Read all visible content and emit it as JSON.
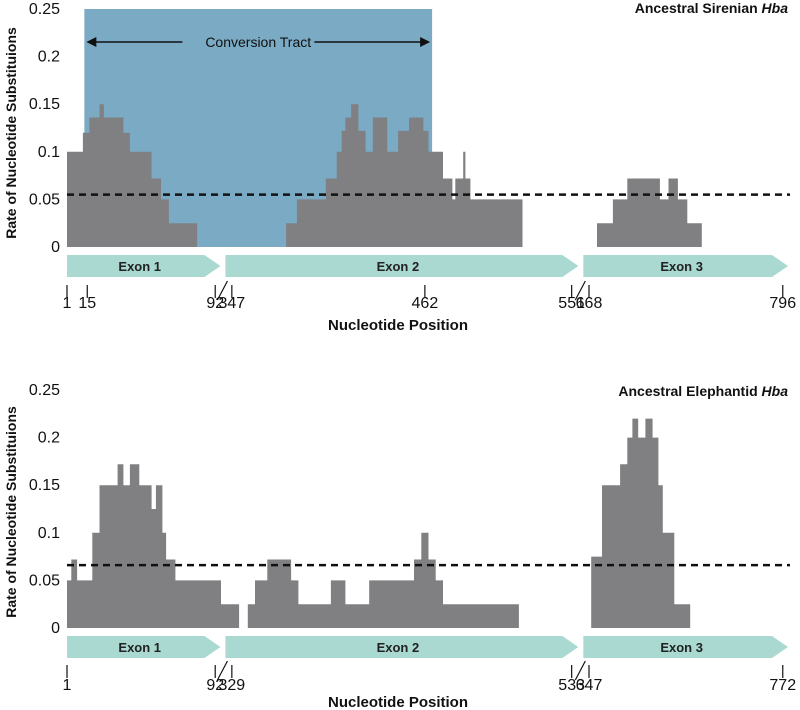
{
  "chart_data": [
    {
      "type": "area",
      "title": "Ancestral Sirenian",
      "title_italic": "Hba",
      "ylabel": "Rate of Nucleotide Substituions",
      "xlabel": "Nucleotide Position",
      "ylim": [
        0,
        0.25
      ],
      "yticks": [
        0,
        0.05,
        0.1,
        0.15,
        0.2,
        0.25
      ],
      "ytick_labels": [
        "0",
        "0.05",
        "0.1",
        "0.15",
        "0.2",
        "0.25"
      ],
      "threshold": 0.055,
      "conversion_tract": {
        "label": "Conversion Tract",
        "x_start": 0.024,
        "x_end": 0.505
      },
      "exons": [
        {
          "label": "Exon 1",
          "x_start": 0.0,
          "x_end": 0.215
        },
        {
          "label": "Exon 2",
          "x_start": 0.215,
          "x_end": 0.71
        },
        {
          "label": "Exon 3",
          "x_start": 0.71,
          "x_end": 1.0
        }
      ],
      "position_ticks": [
        {
          "label": "1",
          "x": 0.0
        },
        {
          "label": "15",
          "x": 0.028
        },
        {
          "label": "92",
          "x": 0.205
        },
        {
          "label": "347",
          "x": 0.228
        },
        {
          "label": "462",
          "x": 0.495
        },
        {
          "label": "551",
          "x": 0.698
        },
        {
          "label": "668",
          "x": 0.722
        },
        {
          "label": "796",
          "x": 0.99
        }
      ],
      "axis_breaks": [
        0.215,
        0.71
      ],
      "segments": [
        {
          "x": [
            0.0,
            0.022,
            0.022,
            0.031,
            0.031,
            0.045,
            0.045,
            0.051,
            0.051,
            0.078,
            0.078,
            0.087,
            0.087,
            0.117,
            0.117,
            0.13,
            0.13,
            0.141,
            0.141,
            0.18,
            0.18,
            0.183
          ],
          "y": [
            0.1,
            0.1,
            0.12,
            0.12,
            0.136,
            0.136,
            0.15,
            0.15,
            0.136,
            0.136,
            0.12,
            0.12,
            0.1,
            0.1,
            0.072,
            0.072,
            0.05,
            0.05,
            0.025,
            0.025,
            0,
            0
          ]
        },
        {
          "x": [
            0.29,
            0.303,
            0.303,
            0.318,
            0.318,
            0.358,
            0.358,
            0.373,
            0.373,
            0.38,
            0.38,
            0.385,
            0.385,
            0.393,
            0.393,
            0.403,
            0.403,
            0.413,
            0.413,
            0.423,
            0.423,
            0.443,
            0.443,
            0.458,
            0.458,
            0.473,
            0.473,
            0.493,
            0.493,
            0.5,
            0.5,
            0.52,
            0.52,
            0.533,
            0.533,
            0.537,
            0.537,
            0.548,
            0.548,
            0.551,
            0.551,
            0.558,
            0.558,
            0.63,
            0.63,
            0.641
          ],
          "y": [
            0,
            0,
            0.025,
            0.025,
            0.05,
            0.05,
            0.072,
            0.072,
            0.1,
            0.1,
            0.122,
            0.122,
            0.136,
            0.136,
            0.15,
            0.15,
            0.122,
            0.122,
            0.1,
            0.1,
            0.136,
            0.136,
            0.1,
            0.1,
            0.122,
            0.122,
            0.136,
            0.136,
            0.122,
            0.122,
            0.1,
            0.1,
            0.072,
            0.072,
            0.05,
            0.05,
            0.072,
            0.072,
            0.1,
            0.1,
            0.072,
            0.072,
            0.05,
            0.05,
            0,
            0
          ]
        },
        {
          "x": [
            0.727,
            0.733,
            0.733,
            0.755,
            0.755,
            0.775,
            0.775,
            0.82,
            0.82,
            0.832,
            0.832,
            0.845,
            0.845,
            0.858,
            0.858,
            0.878,
            0.878,
            0.892
          ],
          "y": [
            0,
            0,
            0.025,
            0.025,
            0.05,
            0.05,
            0.072,
            0.072,
            0.05,
            0.05,
            0.072,
            0.072,
            0.05,
            0.05,
            0.025,
            0.025,
            0,
            0
          ]
        }
      ]
    },
    {
      "type": "area",
      "title": "Ancestral Elephantid",
      "title_italic": "Hba",
      "ylabel": "Rate of Nucleotide Substituions",
      "xlabel": "Nucleotide Position",
      "ylim": [
        0,
        0.25
      ],
      "yticks": [
        0,
        0.05,
        0.1,
        0.15,
        0.2,
        0.25
      ],
      "ytick_labels": [
        "0",
        "0.05",
        "0.1",
        "0.15",
        "0.2",
        "0.25"
      ],
      "threshold": 0.066,
      "exons": [
        {
          "label": "Exon 1",
          "x_start": 0.0,
          "x_end": 0.215
        },
        {
          "label": "Exon 2",
          "x_start": 0.215,
          "x_end": 0.71
        },
        {
          "label": "Exon 3",
          "x_start": 0.71,
          "x_end": 1.0
        }
      ],
      "position_ticks": [
        {
          "label": "1",
          "x": 0.0
        },
        {
          "label": "92",
          "x": 0.205
        },
        {
          "label": "329",
          "x": 0.228
        },
        {
          "label": "533",
          "x": 0.698
        },
        {
          "label": "647",
          "x": 0.722
        },
        {
          "label": "772",
          "x": 0.99
        }
      ],
      "axis_breaks": [
        0.215,
        0.71
      ],
      "segments": [
        {
          "x": [
            0.0,
            0.006,
            0.006,
            0.014,
            0.014,
            0.035,
            0.035,
            0.045,
            0.045,
            0.07,
            0.07,
            0.078,
            0.078,
            0.087,
            0.087,
            0.1,
            0.1,
            0.117,
            0.117,
            0.123,
            0.123,
            0.132,
            0.132,
            0.137,
            0.137,
            0.15,
            0.15,
            0.16,
            0.16,
            0.17,
            0.17,
            0.213,
            0.213,
            0.238,
            0.238,
            0.25,
            0.25,
            0.26,
            0.26,
            0.277,
            0.277,
            0.31,
            0.31,
            0.32,
            0.32,
            0.365,
            0.365,
            0.385,
            0.385,
            0.402,
            0.402,
            0.408,
            0.408,
            0.41,
            0.41,
            0.412,
            0.412,
            0.418,
            0.418,
            0.48,
            0.48,
            0.49,
            0.49,
            0.5,
            0.5,
            0.51,
            0.51,
            0.52,
            0.52,
            0.55,
            0.55,
            0.565,
            0.565,
            0.585,
            0.585,
            0.625,
            0.625,
            0.638
          ],
          "y": [
            0.05,
            0.05,
            0.072,
            0.072,
            0.05,
            0.05,
            0.1,
            0.1,
            0.15,
            0.15,
            0.172,
            0.172,
            0.15,
            0.15,
            0.172,
            0.172,
            0.15,
            0.15,
            0.125,
            0.125,
            0.15,
            0.15,
            0.1,
            0.1,
            0.072,
            0.072,
            0.05,
            0.05,
            0.05,
            0.05,
            0.05,
            0.05,
            0.025,
            0.025,
            0,
            0,
            0.025,
            0.025,
            0.05,
            0.05,
            0.072,
            0.072,
            0.05,
            0.05,
            0.025,
            0.025,
            0.05,
            0.05,
            0.025,
            0.025,
            0.025,
            0.025,
            0.025,
            0.025,
            0.025,
            0.025,
            0.025,
            0.025,
            0.05,
            0.05,
            0.072,
            0.072,
            0.1,
            0.1,
            0.072,
            0.072,
            0.05,
            0.05,
            0.025,
            0.025,
            0.025,
            0.025,
            0.025,
            0.025,
            0.025,
            0.025,
            0,
            0
          ]
        },
        {
          "x": [
            0.71,
            0.725,
            0.725,
            0.74,
            0.74,
            0.765,
            0.765,
            0.775,
            0.775,
            0.782,
            0.782,
            0.79,
            0.79,
            0.8,
            0.8,
            0.81,
            0.81,
            0.818,
            0.818,
            0.824,
            0.824,
            0.84,
            0.84,
            0.862,
            0.862,
            0.872
          ],
          "y": [
            0,
            0,
            0.075,
            0.075,
            0.15,
            0.15,
            0.172,
            0.172,
            0.2,
            0.2,
            0.22,
            0.22,
            0.2,
            0.2,
            0.22,
            0.22,
            0.2,
            0.2,
            0.15,
            0.15,
            0.1,
            0.1,
            0.025,
            0.025,
            0,
            0
          ]
        }
      ]
    }
  ]
}
